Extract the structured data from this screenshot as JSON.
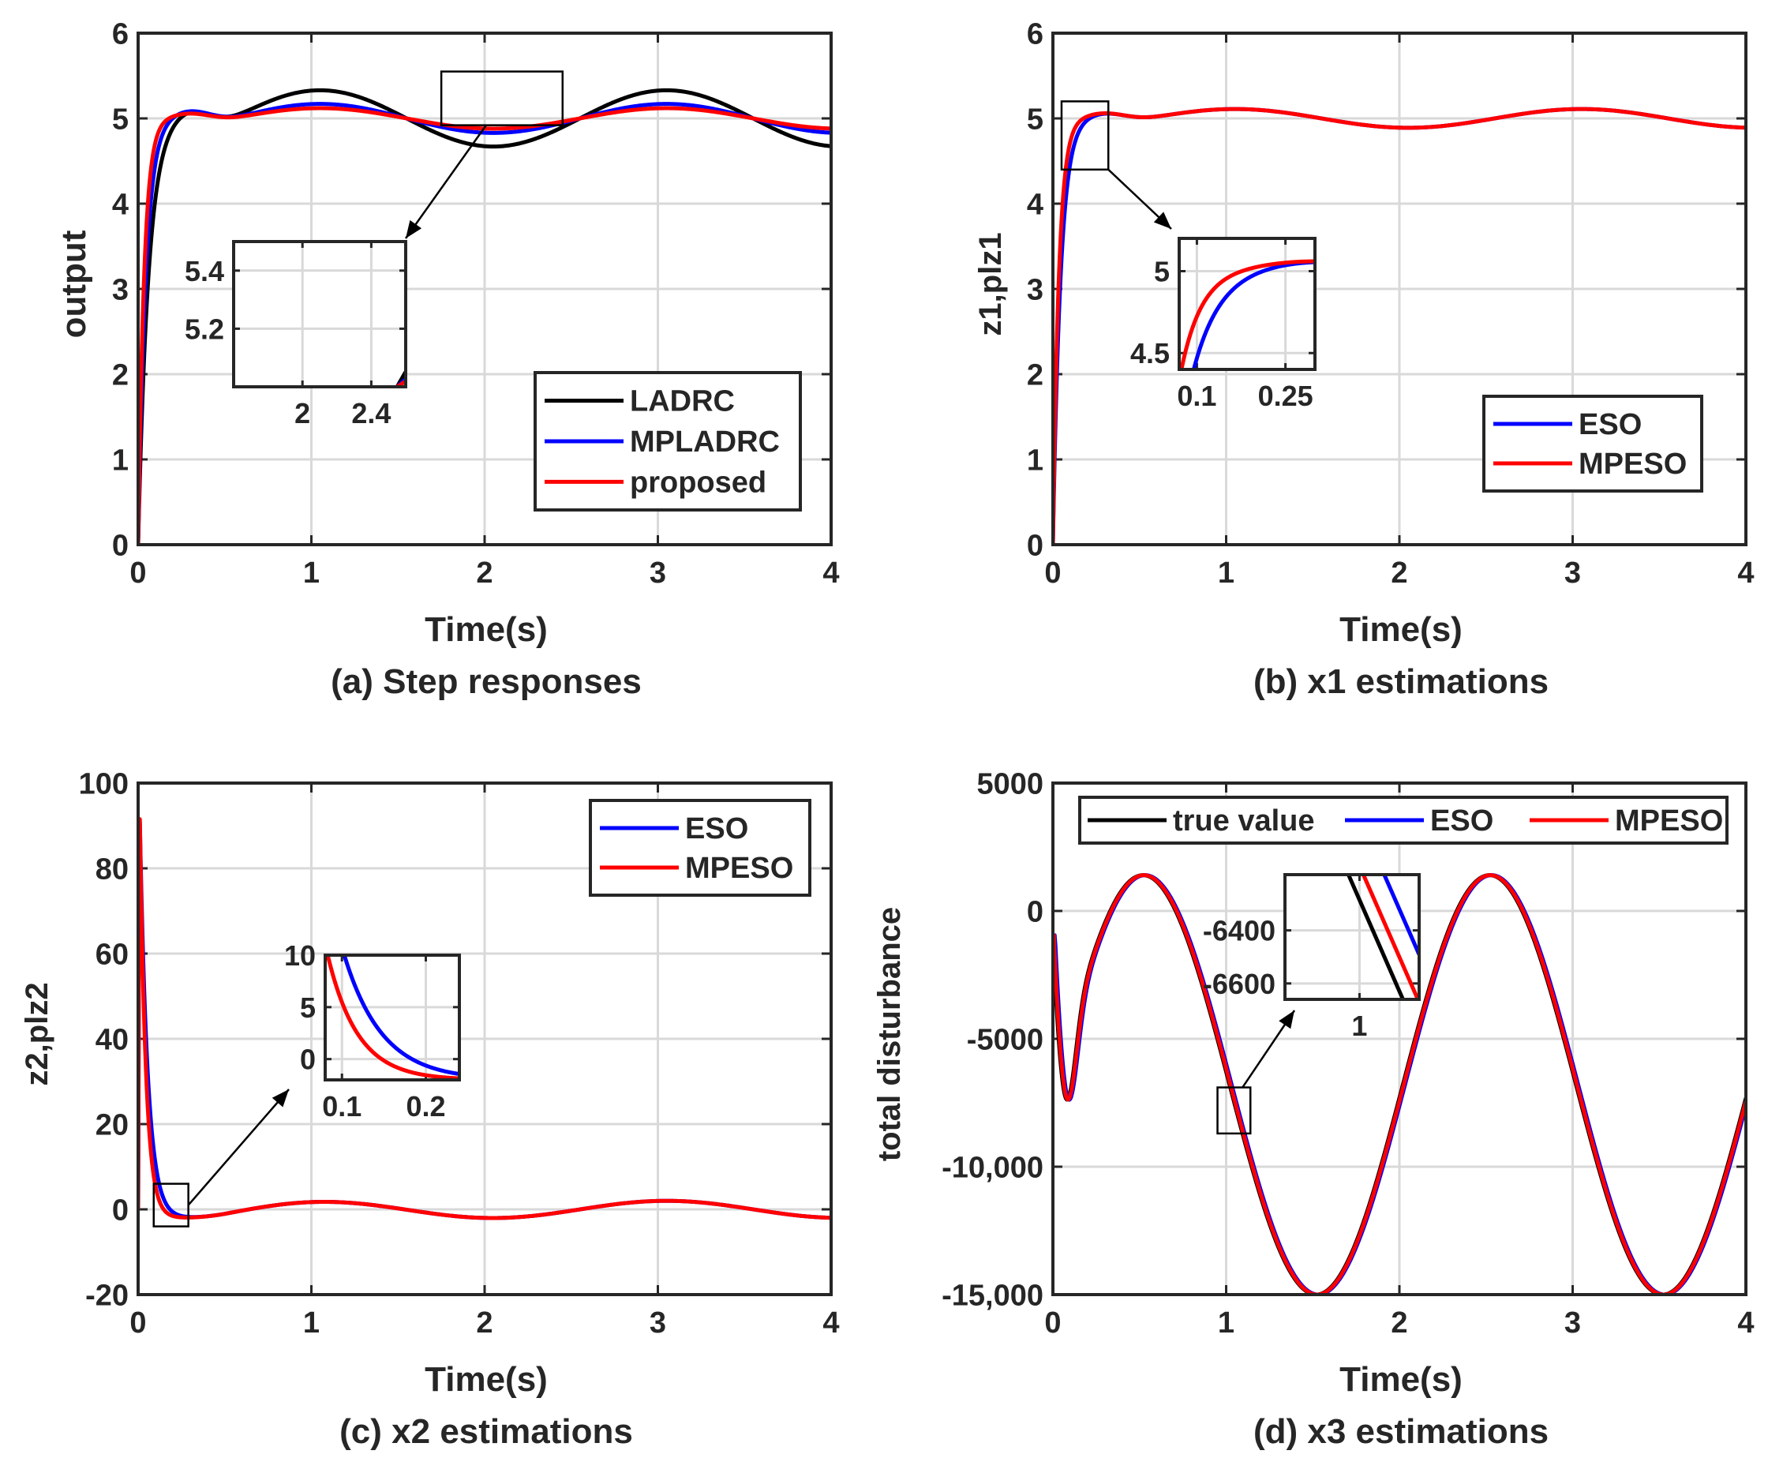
{
  "colors": {
    "black": "#000000",
    "blue": "#0000ff",
    "red": "#ff0000",
    "axis": "#262626",
    "grid": "#d9d9d9"
  },
  "chart_data": [
    {
      "type": "line",
      "caption": "(a) Step responses",
      "xlabel": "Time(s)",
      "ylabel": "output",
      "xlim": [
        0,
        4
      ],
      "ylim": [
        0,
        6
      ],
      "grid": true,
      "xticks": [
        "0",
        "1",
        "2",
        "3",
        "4"
      ],
      "yticks": [
        "0",
        "1",
        "2",
        "3",
        "4",
        "5",
        "6"
      ],
      "legend_position": "bottom-right",
      "series": [
        {
          "name": "LADRC",
          "color": "#000000",
          "final": 5,
          "overshoot": 0.22,
          "rise_tau": 0.06,
          "amp": 0.33,
          "period": 2
        },
        {
          "name": "MPLADRC",
          "color": "#0000ff",
          "final": 5,
          "overshoot": 0.15,
          "rise_tau": 0.045,
          "amp": 0.17,
          "period": 2
        },
        {
          "name": "proposed",
          "color": "#ff0000",
          "final": 5,
          "overshoot": 0.1,
          "rise_tau": 0.035,
          "amp": 0.12,
          "period": 2
        }
      ],
      "inset": {
        "xlim": [
          1.6,
          2.6
        ],
        "ylim": [
          5.0,
          5.5
        ],
        "xticks": [
          "2",
          "2.4"
        ],
        "yticks": [
          "5.2",
          "5.4"
        ],
        "zoom_x": [
          1.75,
          2.45
        ],
        "zoom_y": [
          4.92,
          5.55
        ]
      }
    },
    {
      "type": "line",
      "caption": "(b) x1 estimations",
      "xlabel": "Time(s)",
      "ylabel": "z1,plz1",
      "xlim": [
        0,
        4
      ],
      "ylim": [
        0,
        6
      ],
      "grid": true,
      "xticks": [
        "0",
        "1",
        "2",
        "3",
        "4"
      ],
      "yticks": [
        "0",
        "1",
        "2",
        "3",
        "4",
        "5",
        "6"
      ],
      "legend_position": "bottom-right",
      "series": [
        {
          "name": "ESO",
          "color": "#0000ff",
          "final": 5,
          "overshoot": 0.1,
          "rise_tau": 0.045,
          "amp": 0.11,
          "period": 2
        },
        {
          "name": "MPESO",
          "color": "#ff0000",
          "final": 5,
          "overshoot": 0.1,
          "rise_tau": 0.035,
          "amp": 0.11,
          "period": 2
        }
      ],
      "inset": {
        "xlim": [
          0.07,
          0.3
        ],
        "ylim": [
          4.4,
          5.2
        ],
        "xticks": [
          "0.1",
          "0.25"
        ],
        "yticks": [
          "4.5",
          "5"
        ],
        "zoom_x": [
          0.05,
          0.32
        ],
        "zoom_y": [
          4.4,
          5.2
        ]
      }
    },
    {
      "type": "line",
      "caption": "(c) x2 estimations",
      "xlabel": "Time(s)",
      "ylabel": "z2,plz2",
      "xlim": [
        0,
        4
      ],
      "ylim": [
        -20,
        100
      ],
      "grid": true,
      "xticks": [
        "0",
        "1",
        "2",
        "3",
        "4"
      ],
      "yticks": [
        "-20",
        "0",
        "20",
        "40",
        "60",
        "80",
        "100"
      ],
      "legend_position": "top-right",
      "series": [
        {
          "name": "ESO",
          "color": "#0000ff",
          "peak": 95,
          "decay_tau": 0.045,
          "amp": 2,
          "period": 2
        },
        {
          "name": "MPESO",
          "color": "#ff0000",
          "peak": 97,
          "decay_tau": 0.035,
          "amp": 2,
          "period": 2
        }
      ],
      "inset": {
        "xlim": [
          0.08,
          0.24
        ],
        "ylim": [
          -2,
          10
        ],
        "xticks": [
          "0.1",
          "0.2"
        ],
        "yticks": [
          "0",
          "5",
          "10"
        ],
        "zoom_x": [
          0.09,
          0.29
        ],
        "zoom_y": [
          -4,
          6
        ]
      }
    },
    {
      "type": "line",
      "caption": "(d) x3 estimations",
      "xlabel": "Time(s)",
      "ylabel": "total disturbance",
      "xlim": [
        0,
        4
      ],
      "ylim": [
        -15000,
        5000
      ],
      "grid": true,
      "xticks": [
        "0",
        "1",
        "2",
        "3",
        "4"
      ],
      "yticks": [
        "-15,000",
        "-10,000",
        "-5000",
        "0",
        "5000"
      ],
      "legend_position": "top",
      "series": [
        {
          "name": "true value",
          "color": "#000000",
          "lag": 0
        },
        {
          "name": "ESO",
          "color": "#0000ff",
          "lag": 0.012
        },
        {
          "name": "MPESO",
          "color": "#ff0000",
          "lag": 0.005
        }
      ],
      "inset": {
        "xlim": [
          0.975,
          1.02
        ],
        "ylim": [
          -6660,
          -6190
        ],
        "xticks": [
          "1"
        ],
        "yticks": [
          "-6400",
          "-6600"
        ],
        "zoom_x": [
          0.95,
          1.14
        ],
        "zoom_y": [
          -8700,
          -6900
        ]
      }
    }
  ]
}
